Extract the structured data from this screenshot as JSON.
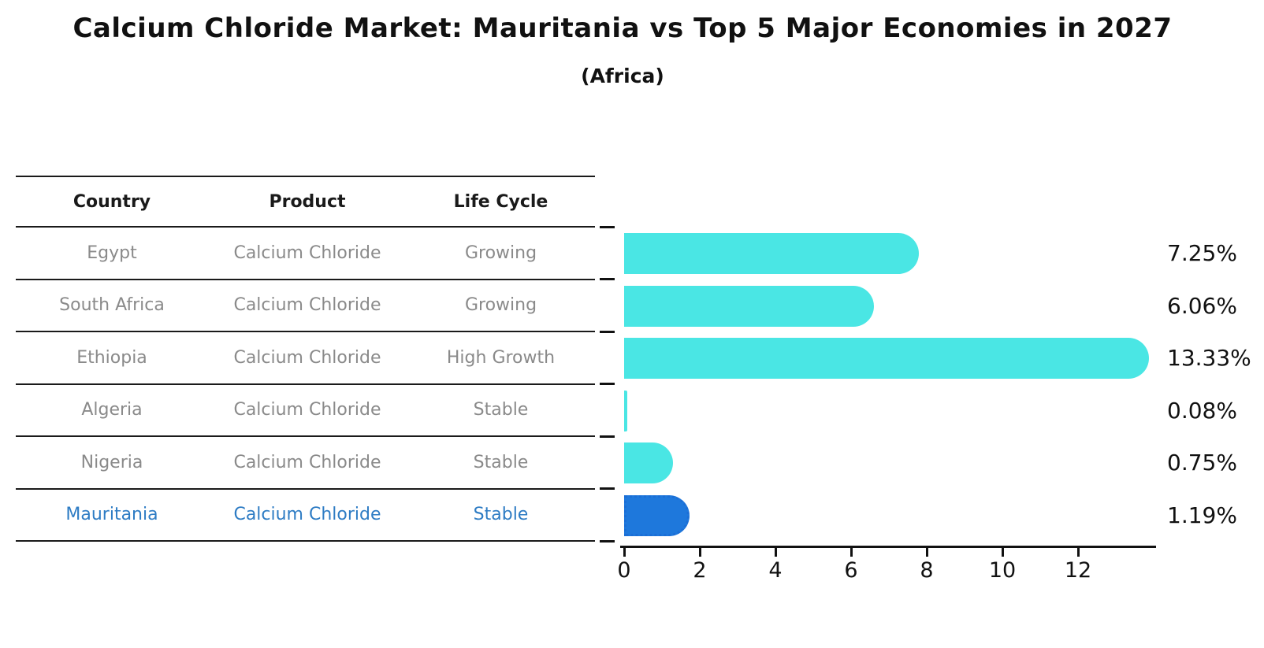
{
  "title": "Calcium Chloride Market: Mauritania vs Top 5 Major Economies in 2027",
  "subtitle": "(Africa)",
  "table": {
    "headers": [
      "Country",
      "Product",
      "Life Cycle"
    ],
    "rows": [
      {
        "country": "Egypt",
        "product": "Calcium Chloride",
        "life_cycle": "Growing",
        "highlighted": false
      },
      {
        "country": "South Africa",
        "product": "Calcium Chloride",
        "life_cycle": "Growing",
        "highlighted": false
      },
      {
        "country": "Ethiopia",
        "product": "Calcium Chloride",
        "life_cycle": "High Growth",
        "highlighted": false
      },
      {
        "country": "Algeria",
        "product": "Calcium Chloride",
        "life_cycle": "Stable",
        "highlighted": false
      },
      {
        "country": "Nigeria",
        "product": "Calcium Chloride",
        "life_cycle": "Stable",
        "highlighted": false
      },
      {
        "country": "Mauritania",
        "product": "Calcium Chloride",
        "life_cycle": "Stable",
        "highlighted": true
      }
    ]
  },
  "chart_data": {
    "type": "bar",
    "orientation": "horizontal",
    "title": "Calcium Chloride Market: Mauritania vs Top 5 Major Economies in 2027",
    "subtitle": "(Africa)",
    "categories": [
      "Egypt",
      "South Africa",
      "Ethiopia",
      "Algeria",
      "Nigeria",
      "Mauritania"
    ],
    "values": [
      7.25,
      6.06,
      13.33,
      0.08,
      0.75,
      1.19
    ],
    "value_labels": [
      "7.25%",
      "6.06%",
      "13.33%",
      "0.08%",
      "0.75%",
      "1.19%"
    ],
    "xlabel": "",
    "ylabel": "",
    "x_ticks": [
      0,
      2,
      4,
      6,
      8,
      10,
      12
    ],
    "xlim": [
      0,
      14.1
    ],
    "grid": false,
    "legend": false,
    "bar_color": "#4ae6e4",
    "highlight_color": "#1e78dc",
    "highlight_border_color": "#1b6ed6",
    "highlight_index": 5,
    "highlight_text_color": "#2e7cc4"
  }
}
